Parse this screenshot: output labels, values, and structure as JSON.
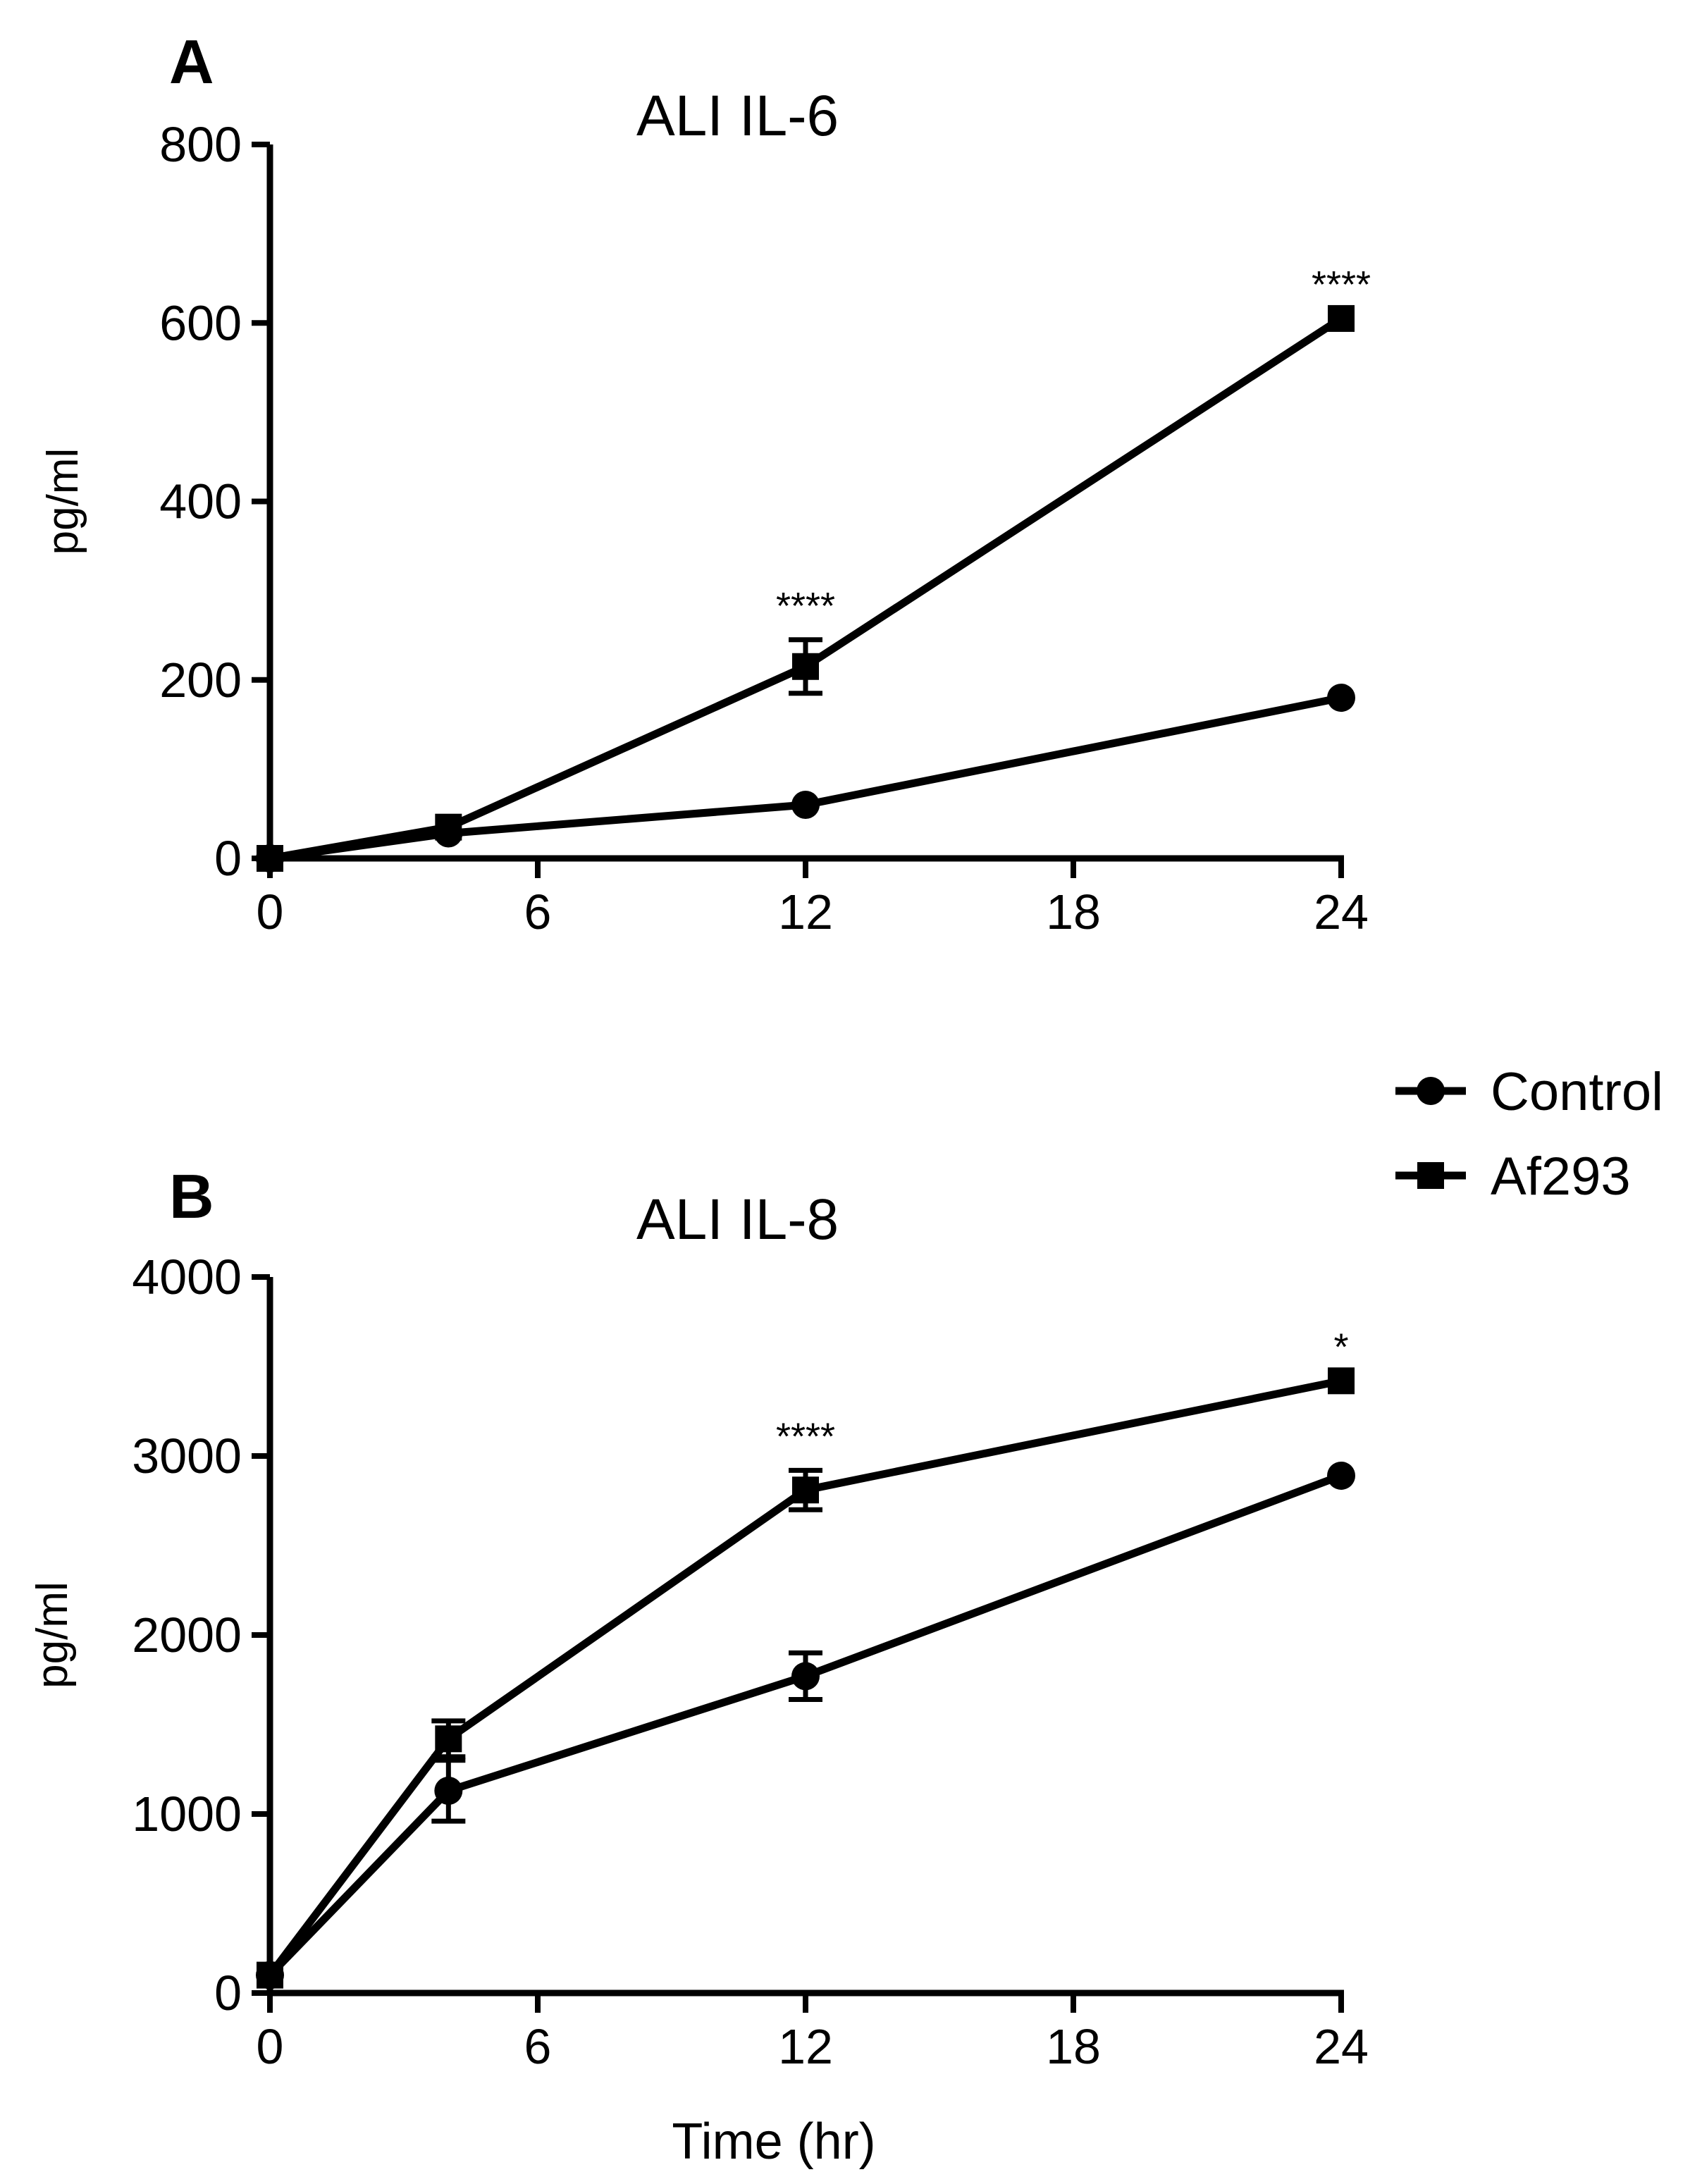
{
  "colors": {
    "ink": "#000000",
    "background": "#ffffff"
  },
  "legend": {
    "placement": "right, between panels",
    "entries": [
      {
        "label": "Control",
        "marker": "circle"
      },
      {
        "label": "Af293",
        "marker": "square"
      }
    ]
  },
  "chart_data": [
    {
      "type": "line",
      "panel": "A",
      "title": "ALI IL-6",
      "xlabel": "",
      "ylabel": "pg/ml",
      "xlim": [
        0,
        24
      ],
      "ylim": [
        0,
        800
      ],
      "xticks": [
        0,
        6,
        12,
        18,
        24
      ],
      "yticks": [
        0,
        200,
        400,
        600,
        800
      ],
      "grid": false,
      "series": [
        {
          "name": "Control",
          "marker": "circle",
          "x": [
            0,
            4,
            12,
            24
          ],
          "y": [
            0,
            28,
            60,
            180
          ],
          "err": [
            0,
            0,
            0,
            0
          ]
        },
        {
          "name": "Af293",
          "marker": "square",
          "x": [
            0,
            4,
            12,
            24
          ],
          "y": [
            0,
            35,
            215,
            605
          ],
          "err": [
            0,
            0,
            30,
            0
          ]
        }
      ],
      "annotations": [
        {
          "x": 12,
          "y": 245,
          "text": "****"
        },
        {
          "x": 24,
          "y": 605,
          "text": "****"
        }
      ]
    },
    {
      "type": "line",
      "panel": "B",
      "title": "ALI IL-8",
      "xlabel": "Time (hr)",
      "ylabel": "pg/ml",
      "xlim": [
        0,
        24
      ],
      "ylim": [
        0,
        4000
      ],
      "xticks": [
        0,
        6,
        12,
        18,
        24
      ],
      "yticks": [
        0,
        1000,
        2000,
        3000,
        4000
      ],
      "grid": false,
      "series": [
        {
          "name": "Control",
          "marker": "circle",
          "x": [
            0,
            4,
            12,
            24
          ],
          "y": [
            100,
            1130,
            1770,
            2890
          ],
          "err": [
            0,
            170,
            130,
            0
          ]
        },
        {
          "name": "Af293",
          "marker": "square",
          "x": [
            0,
            4,
            12,
            24
          ],
          "y": [
            100,
            1420,
            2810,
            3420
          ],
          "err": [
            0,
            100,
            110,
            0
          ]
        }
      ],
      "annotations": [
        {
          "x": 12,
          "y": 2920,
          "text": "****"
        },
        {
          "x": 24,
          "y": 3420,
          "text": "*"
        }
      ]
    }
  ]
}
